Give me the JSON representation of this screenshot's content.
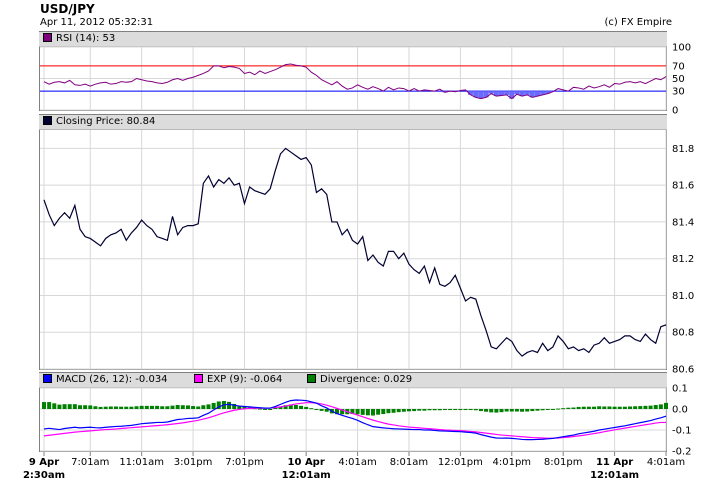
{
  "header": {
    "title": "USD/JPY",
    "date": "Apr 11, 2012 05:32:31",
    "copyright": "(c) FX Empire"
  },
  "colors": {
    "rsi": "#800080",
    "price": "#000033",
    "macd": "#0000ff",
    "exp": "#ff00ff",
    "divergence": "#008000",
    "rsi_upper": "#ff0000",
    "rsi_lower": "#0000ff",
    "grid": "#d8d8d8",
    "header_bg": "#dcdcdc"
  },
  "x_axis": {
    "ticks": [
      {
        "i": 0,
        "label": "9 Apr",
        "label2": "2:30am",
        "bold": true
      },
      {
        "i": 9,
        "label": "7:01am",
        "label2": "",
        "bold": false
      },
      {
        "i": 19,
        "label": "11:01am",
        "label2": "",
        "bold": false
      },
      {
        "i": 29,
        "label": "3:01pm",
        "label2": "",
        "bold": false
      },
      {
        "i": 39,
        "label": "7:01pm",
        "label2": "",
        "bold": false
      },
      {
        "i": 51,
        "label": "10 Apr",
        "label2": "12:01am",
        "bold": true
      },
      {
        "i": 61,
        "label": "4:01am",
        "label2": "",
        "bold": false
      },
      {
        "i": 71,
        "label": "8:01am",
        "label2": "",
        "bold": false
      },
      {
        "i": 81,
        "label": "12:01pm",
        "label2": "",
        "bold": false
      },
      {
        "i": 91,
        "label": "4:01pm",
        "label2": "",
        "bold": false
      },
      {
        "i": 101,
        "label": "8:01pm",
        "label2": "",
        "bold": false
      },
      {
        "i": 111,
        "label": "11 Apr",
        "label2": "12:01am",
        "bold": true
      },
      {
        "i": 121,
        "label": "4:01am",
        "label2": "",
        "bold": false
      }
    ]
  },
  "chart_data": [
    {
      "type": "line",
      "name": "rsi",
      "legend": "RSI (14): 53",
      "ylim": [
        0,
        100
      ],
      "yticks": [
        0,
        30,
        50,
        70,
        100
      ],
      "levels": [
        70,
        30
      ],
      "values": [
        45,
        41,
        44,
        45,
        43,
        47,
        40,
        39,
        41,
        38,
        41,
        43,
        44,
        41,
        42,
        45,
        44,
        45,
        50,
        48,
        46,
        45,
        43,
        42,
        44,
        48,
        50,
        47,
        50,
        52,
        55,
        58,
        62,
        70,
        70,
        67,
        69,
        68,
        66,
        58,
        60,
        56,
        62,
        58,
        61,
        64,
        68,
        72,
        73,
        71,
        70,
        68,
        60,
        55,
        48,
        44,
        40,
        45,
        38,
        33,
        35,
        40,
        36,
        33,
        37,
        34,
        30,
        36,
        32,
        35,
        34,
        30,
        34,
        30,
        32,
        31,
        30,
        33,
        28,
        30,
        29,
        31,
        32,
        24,
        20,
        18,
        20,
        26,
        22,
        23,
        24,
        18,
        25,
        22,
        24,
        20,
        22,
        24,
        26,
        29,
        34,
        32,
        30,
        36,
        35,
        33,
        38,
        35,
        37,
        40,
        36,
        42,
        41,
        44,
        45,
        43,
        45,
        42,
        46,
        50,
        48,
        53
      ]
    },
    {
      "type": "line",
      "name": "closing-price",
      "legend": "Closing Price: 80.84",
      "ylim": [
        80.6,
        81.9
      ],
      "yticks": [
        80.6,
        80.8,
        81.0,
        81.2,
        81.4,
        81.6,
        81.8
      ],
      "values": [
        81.52,
        81.44,
        81.38,
        81.42,
        81.45,
        81.42,
        81.49,
        81.36,
        81.32,
        81.31,
        81.29,
        81.27,
        81.31,
        81.33,
        81.34,
        81.36,
        81.3,
        81.34,
        81.37,
        81.41,
        81.38,
        81.36,
        81.32,
        81.31,
        81.3,
        81.43,
        81.33,
        81.37,
        81.38,
        81.38,
        81.39,
        81.61,
        81.65,
        81.59,
        81.63,
        81.61,
        81.64,
        81.6,
        81.61,
        81.5,
        81.59,
        81.57,
        81.56,
        81.55,
        81.58,
        81.68,
        81.77,
        81.8,
        81.78,
        81.76,
        81.74,
        81.75,
        81.71,
        81.56,
        81.58,
        81.55,
        81.4,
        81.4,
        81.33,
        81.36,
        81.3,
        81.28,
        81.32,
        81.19,
        81.22,
        81.18,
        81.16,
        81.24,
        81.24,
        81.2,
        81.23,
        81.17,
        81.14,
        81.12,
        81.16,
        81.07,
        81.15,
        81.06,
        81.05,
        81.07,
        81.11,
        81.04,
        80.97,
        80.99,
        80.98,
        80.89,
        80.81,
        80.72,
        80.71,
        80.74,
        80.77,
        80.75,
        80.7,
        80.67,
        80.69,
        80.7,
        80.69,
        80.74,
        80.7,
        80.72,
        80.78,
        80.75,
        80.71,
        80.72,
        80.7,
        80.71,
        80.69,
        80.73,
        80.74,
        80.77,
        80.74,
        80.75,
        80.76,
        80.78,
        80.78,
        80.76,
        80.75,
        80.79,
        80.76,
        80.74,
        80.83,
        80.84
      ]
    },
    {
      "type": "line",
      "name": "macd",
      "legend": "MACD (26, 12): -0.034",
      "legend_exp": "EXP (9): -0.064",
      "legend_div": "Divergence: 0.029",
      "ylim": [
        -0.2,
        0.1
      ],
      "yticks": [
        -0.2,
        -0.1,
        0.0,
        0.1
      ],
      "series": [
        {
          "name": "MACD (26, 12): -0.034",
          "values": [
            -0.095,
            -0.092,
            -0.095,
            -0.098,
            -0.093,
            -0.09,
            -0.087,
            -0.09,
            -0.088,
            -0.087,
            -0.089,
            -0.09,
            -0.087,
            -0.085,
            -0.083,
            -0.082,
            -0.08,
            -0.078,
            -0.074,
            -0.07,
            -0.068,
            -0.066,
            -0.064,
            -0.064,
            -0.062,
            -0.056,
            -0.05,
            -0.048,
            -0.045,
            -0.044,
            -0.042,
            -0.03,
            -0.02,
            -0.005,
            0.01,
            0.02,
            0.022,
            0.018,
            0.014,
            0.012,
            0.01,
            0.008,
            0.006,
            0.004,
            0.004,
            0.012,
            0.022,
            0.032,
            0.04,
            0.043,
            0.042,
            0.04,
            0.034,
            0.028,
            0.015,
            0.005,
            -0.01,
            -0.022,
            -0.03,
            -0.038,
            -0.045,
            -0.054,
            -0.065,
            -0.075,
            -0.084,
            -0.087,
            -0.09,
            -0.092,
            -0.094,
            -0.095,
            -0.096,
            -0.097,
            -0.098,
            -0.098,
            -0.1,
            -0.1,
            -0.102,
            -0.104,
            -0.105,
            -0.106,
            -0.107,
            -0.108,
            -0.11,
            -0.112,
            -0.115,
            -0.122,
            -0.128,
            -0.134,
            -0.138,
            -0.139,
            -0.138,
            -0.14,
            -0.142,
            -0.145,
            -0.146,
            -0.146,
            -0.145,
            -0.144,
            -0.142,
            -0.14,
            -0.136,
            -0.132,
            -0.128,
            -0.124,
            -0.118,
            -0.114,
            -0.11,
            -0.106,
            -0.1,
            -0.096,
            -0.092,
            -0.088,
            -0.084,
            -0.08,
            -0.075,
            -0.07,
            -0.065,
            -0.06,
            -0.055,
            -0.048,
            -0.042,
            -0.034
          ]
        },
        {
          "name": "EXP (9): -0.064",
          "values": [
            -0.128,
            -0.125,
            -0.122,
            -0.119,
            -0.116,
            -0.113,
            -0.11,
            -0.108,
            -0.106,
            -0.104,
            -0.102,
            -0.1,
            -0.098,
            -0.097,
            -0.095,
            -0.093,
            -0.091,
            -0.089,
            -0.087,
            -0.085,
            -0.083,
            -0.081,
            -0.079,
            -0.077,
            -0.075,
            -0.072,
            -0.069,
            -0.066,
            -0.062,
            -0.058,
            -0.054,
            -0.048,
            -0.042,
            -0.034,
            -0.026,
            -0.018,
            -0.012,
            -0.006,
            -0.002,
            0.001,
            0.003,
            0.004,
            0.004,
            0.004,
            0.005,
            0.007,
            0.01,
            0.014,
            0.019,
            0.024,
            0.027,
            0.03,
            0.03,
            0.028,
            0.024,
            0.018,
            0.011,
            0.003,
            -0.005,
            -0.013,
            -0.021,
            -0.029,
            -0.037,
            -0.045,
            -0.053,
            -0.06,
            -0.066,
            -0.072,
            -0.076,
            -0.08,
            -0.083,
            -0.086,
            -0.088,
            -0.09,
            -0.092,
            -0.094,
            -0.096,
            -0.098,
            -0.1,
            -0.101,
            -0.102,
            -0.103,
            -0.105,
            -0.107,
            -0.109,
            -0.112,
            -0.115,
            -0.118,
            -0.121,
            -0.124,
            -0.126,
            -0.128,
            -0.13,
            -0.132,
            -0.134,
            -0.136,
            -0.137,
            -0.138,
            -0.139,
            -0.139,
            -0.138,
            -0.136,
            -0.134,
            -0.131,
            -0.128,
            -0.125,
            -0.121,
            -0.117,
            -0.113,
            -0.108,
            -0.104,
            -0.099,
            -0.095,
            -0.091,
            -0.087,
            -0.083,
            -0.079,
            -0.075,
            -0.071,
            -0.067,
            -0.064,
            -0.064
          ]
        },
        {
          "name": "Divergence: 0.029",
          "type": "bar",
          "values": [
            0.033,
            0.033,
            0.027,
            0.021,
            0.023,
            0.023,
            0.023,
            0.018,
            0.018,
            0.017,
            0.013,
            0.01,
            0.011,
            0.012,
            0.012,
            0.011,
            0.011,
            0.011,
            0.013,
            0.015,
            0.015,
            0.015,
            0.015,
            0.013,
            0.013,
            0.016,
            0.019,
            0.018,
            0.017,
            0.014,
            0.012,
            0.018,
            0.022,
            0.029,
            0.036,
            0.038,
            0.034,
            0.024,
            0.016,
            0.011,
            0.007,
            0.004,
            0.002,
            0.0,
            -0.001,
            0.005,
            0.012,
            0.018,
            0.021,
            0.019,
            0.015,
            0.01,
            0.004,
            0.0,
            -0.009,
            -0.013,
            -0.021,
            -0.025,
            -0.025,
            -0.025,
            -0.024,
            -0.025,
            -0.028,
            -0.03,
            -0.031,
            -0.027,
            -0.024,
            -0.02,
            -0.018,
            -0.015,
            -0.013,
            -0.011,
            -0.01,
            -0.008,
            -0.008,
            -0.006,
            -0.006,
            -0.006,
            -0.005,
            -0.005,
            -0.005,
            -0.005,
            -0.005,
            -0.005,
            -0.006,
            -0.01,
            -0.013,
            -0.016,
            -0.017,
            -0.015,
            -0.012,
            -0.012,
            -0.012,
            -0.013,
            -0.012,
            -0.01,
            -0.008,
            -0.006,
            -0.003,
            -0.001,
            0.002,
            0.004,
            0.006,
            0.007,
            0.01,
            0.011,
            0.011,
            0.011,
            0.013,
            0.012,
            0.012,
            0.011,
            0.011,
            0.011,
            0.012,
            0.013,
            0.014,
            0.015,
            0.016,
            0.019,
            0.022,
            0.029
          ]
        }
      ]
    }
  ]
}
